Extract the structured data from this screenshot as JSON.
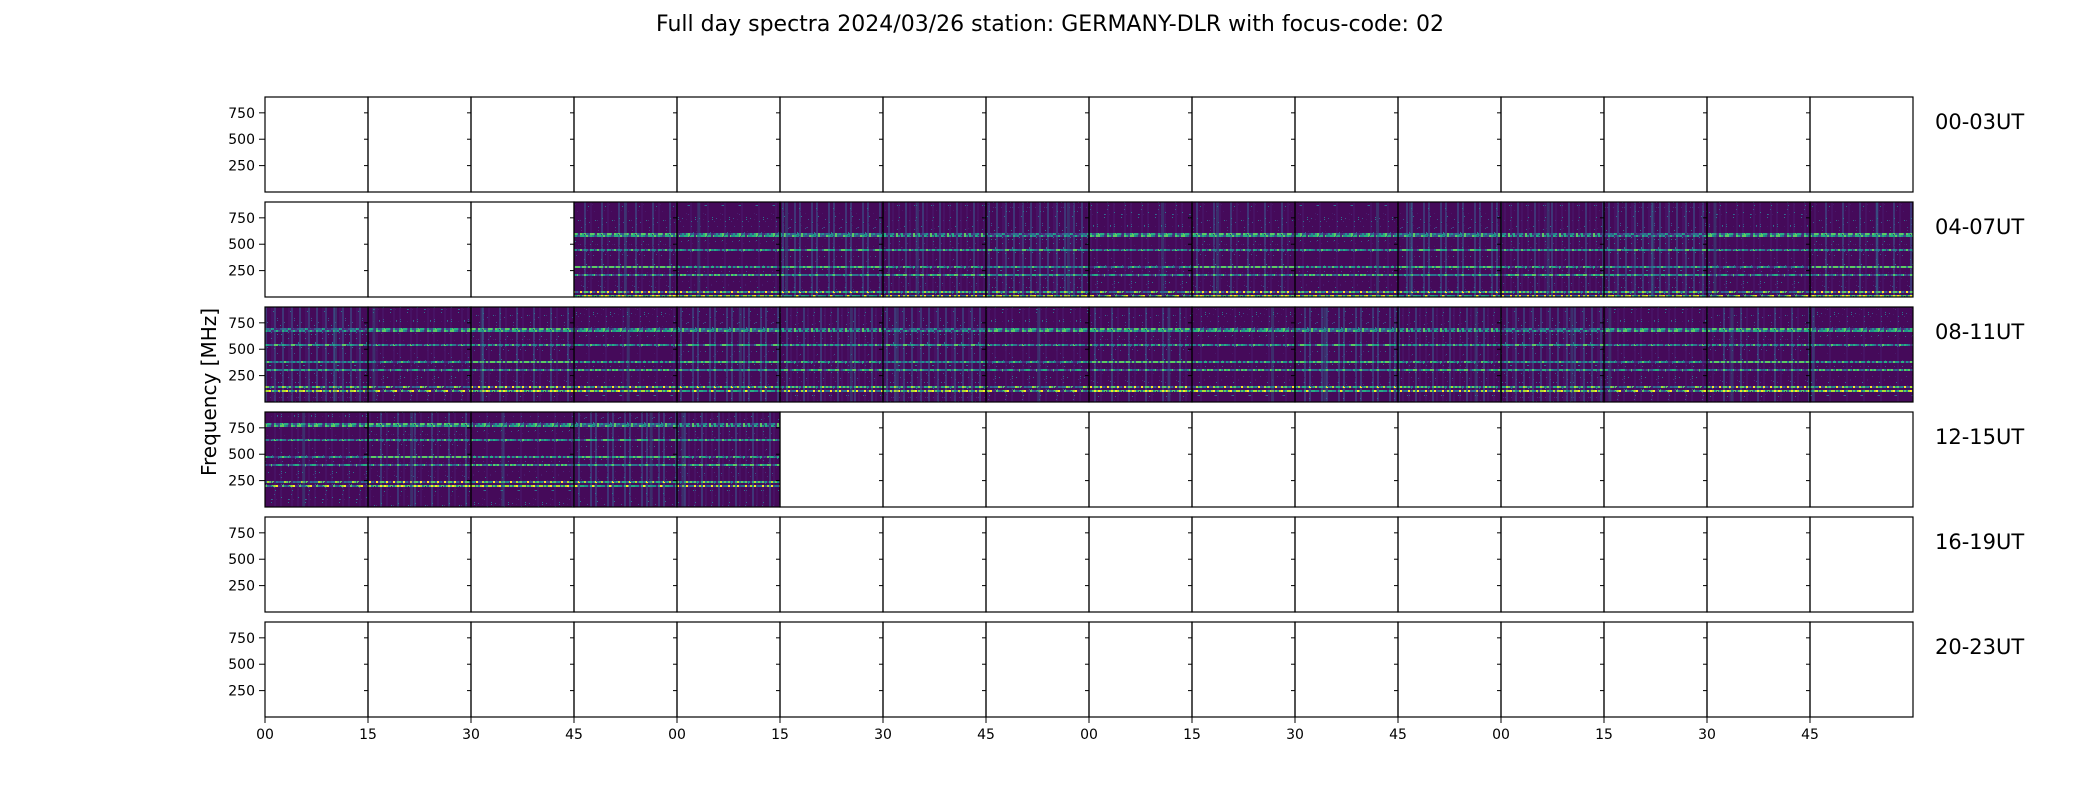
{
  "chart_data": {
    "type": "heatmap",
    "title": "Full day spectra 2024/03/26 station: GERMANY-DLR with focus-code: 02",
    "ylabel": "Frequency [MHz]",
    "xlabel": "",
    "yticks": [
      250,
      500,
      750
    ],
    "ylim": [
      0,
      900
    ],
    "xtick_labels": [
      "00",
      "15",
      "30",
      "45",
      "00",
      "15",
      "30",
      "45",
      "00",
      "15",
      "30",
      "45",
      "00",
      "15",
      "30",
      "45"
    ],
    "panels_per_row": 16,
    "panel_minutes": 15,
    "colormap": "viridis",
    "rows": [
      {
        "label": "00-03UT",
        "data_panels": []
      },
      {
        "label": "04-07UT",
        "data_panels": [
          3,
          4,
          5,
          6,
          7,
          8,
          9,
          10,
          11,
          12,
          13,
          14,
          15
        ]
      },
      {
        "label": "08-11UT",
        "data_panels": [
          0,
          1,
          2,
          3,
          4,
          5,
          6,
          7,
          8,
          9,
          10,
          11,
          12,
          13,
          14,
          15
        ]
      },
      {
        "label": "12-15UT",
        "data_panels": [
          0,
          1,
          2,
          3,
          4
        ]
      },
      {
        "label": "16-19UT",
        "data_panels": []
      },
      {
        "label": "20-23UT",
        "data_panels": []
      }
    ]
  }
}
